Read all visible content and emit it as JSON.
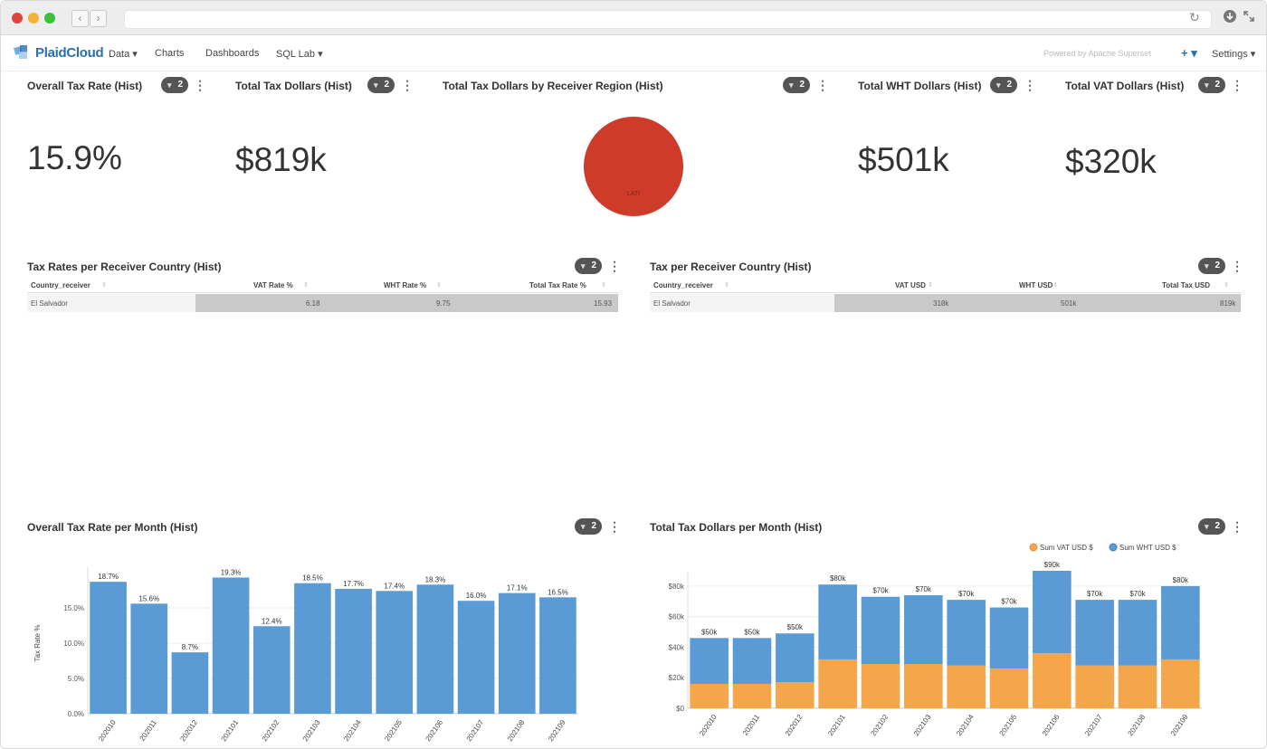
{
  "browser": {
    "url": ""
  },
  "nav": {
    "brand": "PlaidCloud",
    "menu": [
      {
        "label": "Data ▾"
      },
      {
        "label": "Charts"
      },
      {
        "label": "Dashboards"
      },
      {
        "label": "SQL Lab ▾"
      }
    ],
    "powered_by": "Powered by Apache Superset",
    "plus": "+ ▾",
    "settings": "Settings ▾"
  },
  "cards": {
    "overall_tax_rate": {
      "title": "Overall Tax Rate (Hist)",
      "filters": "2",
      "value": "15.9%"
    },
    "total_tax_dollars": {
      "title": "Total Tax Dollars (Hist)",
      "filters": "2",
      "value": "$819k"
    },
    "by_region": {
      "title": "Total Tax Dollars by Receiver Region (Hist)",
      "filters": "2",
      "pie_label": "LATI"
    },
    "total_wht": {
      "title": "Total WHT Dollars (Hist)",
      "filters": "2",
      "value": "$501k"
    },
    "total_vat": {
      "title": "Total VAT Dollars (Hist)",
      "filters": "2",
      "value": "$320k"
    }
  },
  "rate_table": {
    "title": "Tax Rates per Receiver Country (Hist)",
    "filters": "2",
    "columns": [
      "Country_receiver",
      "VAT Rate %",
      "WHT Rate %",
      "Total Tax Rate %"
    ],
    "rows": [
      [
        "El Salvador",
        "6.18",
        "9.75",
        "15.93"
      ]
    ]
  },
  "usd_table": {
    "title": "Tax per Receiver Country (Hist)",
    "filters": "2",
    "columns": [
      "Country_receiver",
      "VAT USD",
      "WHT USD",
      "Total Tax USD"
    ],
    "rows": [
      [
        "El Salvador",
        "318k",
        "501k",
        "819k"
      ]
    ]
  },
  "rate_chart": {
    "title": "Overall Tax Rate per Month (Hist)",
    "filters": "2",
    "chart_data": {
      "type": "bar",
      "categories": [
        "202010",
        "202011",
        "202012",
        "202101",
        "202102",
        "202103",
        "202104",
        "202105",
        "202106",
        "202107",
        "202108",
        "202109"
      ],
      "values": [
        18.7,
        15.6,
        8.7,
        19.3,
        12.4,
        18.5,
        17.7,
        17.4,
        18.3,
        16.0,
        17.1,
        16.5
      ],
      "labels": [
        "18.7%",
        "15.6%",
        "8.7%",
        "19.3%",
        "12.4%",
        "18.5%",
        "17.7%",
        "17.4%",
        "18.3%",
        "16.0%",
        "17.1%",
        "16.5%"
      ],
      "ylabel": "Tax Rate %",
      "yticks": [
        "0.0%",
        "5.0%",
        "10.0%",
        "15.0%"
      ],
      "ylim": [
        0,
        20
      ],
      "color": "#5b9bd5"
    }
  },
  "dollar_chart": {
    "title": "Total Tax Dollars per Month (Hist)",
    "filters": "2",
    "chart_data": {
      "type": "bar",
      "stacked": true,
      "categories": [
        "202010",
        "202011",
        "202012",
        "202101",
        "202102",
        "202103",
        "202104",
        "202105",
        "202106",
        "202107",
        "202108",
        "202109"
      ],
      "series": [
        {
          "name": "Sum VAT USD $",
          "color": "#f5a54a",
          "values": [
            16,
            16,
            17,
            32,
            29,
            29,
            28,
            26,
            36,
            28,
            28,
            32
          ]
        },
        {
          "name": "Sum WHT USD $",
          "color": "#5b9bd5",
          "values": [
            30,
            30,
            32,
            49,
            44,
            45,
            43,
            40,
            54,
            43,
            43,
            48
          ]
        }
      ],
      "labels": [
        "$50k",
        "$50k",
        "$50k",
        "$80k",
        "$70k",
        "$70k",
        "$70k",
        "$70k",
        "$90k",
        "$70k",
        "$70k",
        "$80k"
      ],
      "yticks": [
        "$0",
        "$20k",
        "$40k",
        "$60k",
        "$80k"
      ],
      "ylim": [
        0,
        90
      ],
      "legend_position": "top-right"
    }
  }
}
